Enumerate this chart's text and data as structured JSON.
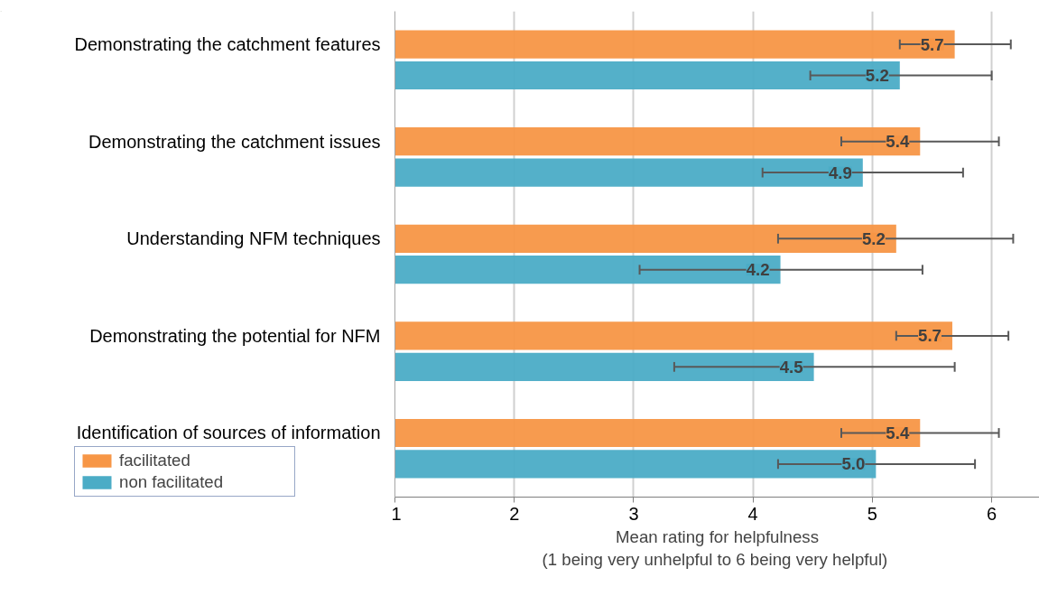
{
  "chart_data": {
    "type": "bar",
    "orientation": "horizontal",
    "categories": [
      "Demonstrating the catchment features",
      "Demonstrating the catchment issues",
      "Understanding NFM techniques",
      "Demonstrating the potential for NFM",
      "Identification of sources of information"
    ],
    "series": [
      {
        "name": "facilitated",
        "color": "#f79646",
        "values": [
          5.69,
          5.4,
          5.2,
          5.67,
          5.4
        ],
        "errors": [
          [
            5.23,
            6.16
          ],
          [
            4.74,
            6.06
          ],
          [
            4.21,
            6.18
          ],
          [
            5.2,
            6.14
          ],
          [
            4.74,
            6.06
          ]
        ],
        "value_labels": [
          "5.7",
          "5.4",
          "5.2",
          "5.7",
          "5.4"
        ]
      },
      {
        "name": "non facilitated",
        "color": "#4bacc6",
        "values": [
          5.23,
          4.92,
          4.23,
          4.51,
          5.03
        ],
        "errors": [
          [
            4.48,
            6.0
          ],
          [
            4.08,
            5.76
          ],
          [
            3.05,
            5.42
          ],
          [
            3.34,
            5.69
          ],
          [
            4.21,
            5.86
          ]
        ],
        "value_labels": [
          "5.2",
          "4.9",
          "4.2",
          "4.5",
          "5.0"
        ]
      }
    ],
    "xlabel": "Mean rating for helpfulness\n(1 being very unhelpful  to 6 being very helpful)",
    "xlim": [
      1,
      6.4
    ],
    "xticks": [
      1,
      2,
      3,
      4,
      5,
      6
    ],
    "grid": "x",
    "legend": "bottom left"
  }
}
